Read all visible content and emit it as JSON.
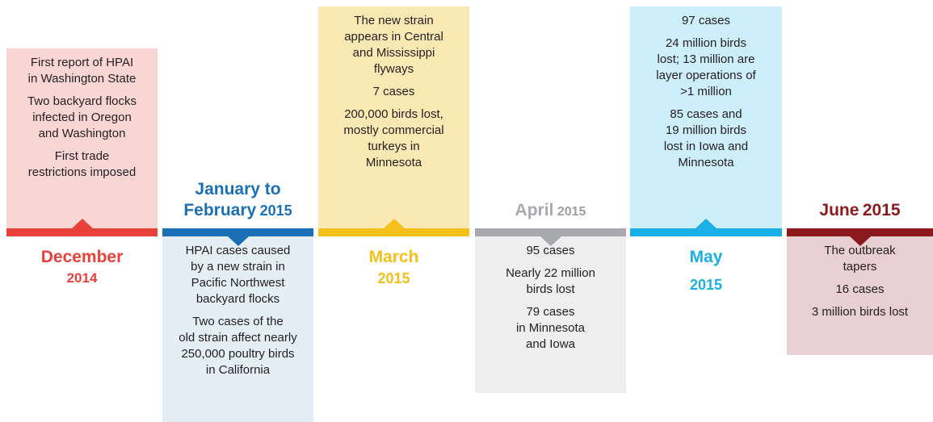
{
  "periods": [
    {
      "month": "December",
      "year": "2014",
      "color": "#e8413c",
      "box_color": "#f9d6d4",
      "items": [
        [
          "First report of HPAI",
          "in Washington State"
        ],
        [
          "Two backyard flocks",
          "infected in Oregon",
          "and Washington"
        ],
        [
          "First trade",
          "restrictions imposed"
        ]
      ]
    },
    {
      "month": "January to February",
      "year": "2015",
      "color": "#1a6fb5",
      "box_color": "#e4eef7",
      "items": [
        [
          "HPAI cases caused",
          "by a new strain in",
          "Pacific Northwest",
          "backyard flocks"
        ],
        [
          "Two cases of the",
          "old strain affect nearly",
          "250,000 poultry birds",
          "in California"
        ]
      ]
    },
    {
      "month": "March",
      "year": "2015",
      "color": "#f5bf1c",
      "box_color": "#fbe9b4",
      "items": [
        [
          "The new strain",
          "appears in Central",
          "and Mississippi",
          "flyways"
        ],
        [
          "7 cases"
        ],
        [
          "200,000 birds lost,",
          "mostly commercial",
          "turkeys in",
          "Minnesota"
        ]
      ]
    },
    {
      "month": "April",
      "year": "2015",
      "color": "#a7a9ac",
      "box_color": "#eeeeee",
      "items": [
        [
          "95 cases"
        ],
        [
          "Nearly 22 million",
          "birds lost"
        ],
        [
          "79 cases",
          "in Minnesota",
          "and Iowa"
        ]
      ]
    },
    {
      "month": "May",
      "year": "2015",
      "color": "#1ab0e6",
      "box_color": "#cdeefb",
      "items": [
        [
          "97 cases"
        ],
        [
          "24 million birds",
          "lost; 13 million are",
          "layer operations of",
          ">1 million"
        ],
        [
          "85 cases and",
          "19 million birds",
          "lost in Iowa and",
          "Minnesota"
        ]
      ]
    },
    {
      "month": "June",
      "year": "2015",
      "color": "#8b1a1e",
      "box_color": "#e8cfd3",
      "items": [
        [
          "The outbreak",
          "tapers"
        ],
        [
          "16 cases"
        ],
        [
          "3 million birds lost"
        ]
      ]
    }
  ]
}
